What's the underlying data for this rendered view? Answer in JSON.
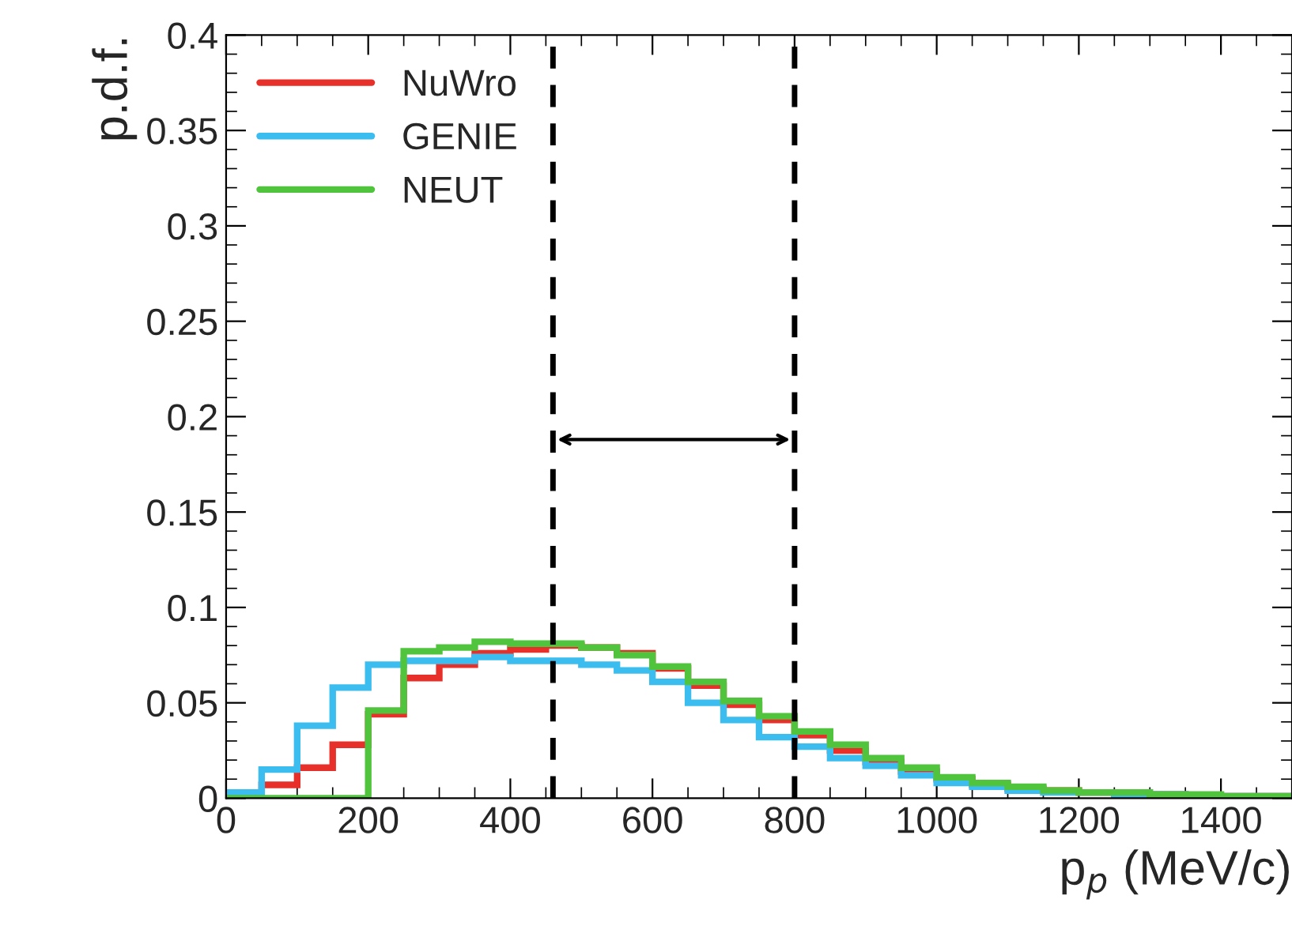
{
  "chart_data": {
    "type": "histogram",
    "xlabel": "p$_{p}$ (MeV/c)",
    "ylabel": "p.d.f.",
    "bins": [
      0,
      50,
      100,
      150,
      200,
      250,
      300,
      350,
      400,
      450,
      500,
      550,
      600,
      650,
      700,
      750,
      800,
      850,
      900,
      950,
      1000,
      1050,
      1100,
      1150,
      1200,
      1250,
      1300,
      1350,
      1400,
      1450,
      1500
    ],
    "series": [
      {
        "name": "NuWro",
        "color": "#e8302a",
        "values": [
          0.002,
          0.007,
          0.016,
          0.028,
          0.044,
          0.063,
          0.07,
          0.076,
          0.078,
          0.08,
          0.079,
          0.076,
          0.068,
          0.059,
          0.049,
          0.041,
          0.033,
          0.025,
          0.019,
          0.014,
          0.01,
          0.007,
          0.005,
          0.004,
          0.003,
          0.002,
          0.002,
          0.001,
          0.001,
          0.001
        ]
      },
      {
        "name": "GENIE",
        "color": "#3cbdf0",
        "values": [
          0.003,
          0.015,
          0.038,
          0.058,
          0.07,
          0.072,
          0.072,
          0.074,
          0.072,
          0.072,
          0.07,
          0.067,
          0.061,
          0.05,
          0.041,
          0.032,
          0.027,
          0.021,
          0.017,
          0.012,
          0.008,
          0.006,
          0.004,
          0.003,
          0.003,
          0.002,
          0.002,
          0.001,
          0.001,
          0.001
        ]
      },
      {
        "name": "NEUT",
        "color": "#4fc43c",
        "values": [
          0,
          0,
          0,
          0,
          0.046,
          0.077,
          0.079,
          0.082,
          0.081,
          0.081,
          0.079,
          0.075,
          0.069,
          0.061,
          0.051,
          0.043,
          0.035,
          0.028,
          0.021,
          0.016,
          0.011,
          0.008,
          0.006,
          0.004,
          0.003,
          0.003,
          0.002,
          0.002,
          0.001,
          0.001
        ]
      }
    ],
    "xlim": [
      0,
      1500
    ],
    "xticks": [
      0,
      200,
      400,
      600,
      800,
      1000,
      1200,
      1400
    ],
    "ylim": [
      0,
      0.4
    ],
    "yticks": [
      0,
      0.05,
      0.1,
      0.15,
      0.2,
      0.25,
      0.3,
      0.35,
      0.4
    ],
    "ref_lines": [
      {
        "axis": "x",
        "value": 460,
        "line_style": "dashed",
        "color": "#000000"
      },
      {
        "axis": "x",
        "value": 800,
        "line_style": "dashed",
        "color": "#000000"
      }
    ],
    "legend": "top left",
    "grid": false
  }
}
